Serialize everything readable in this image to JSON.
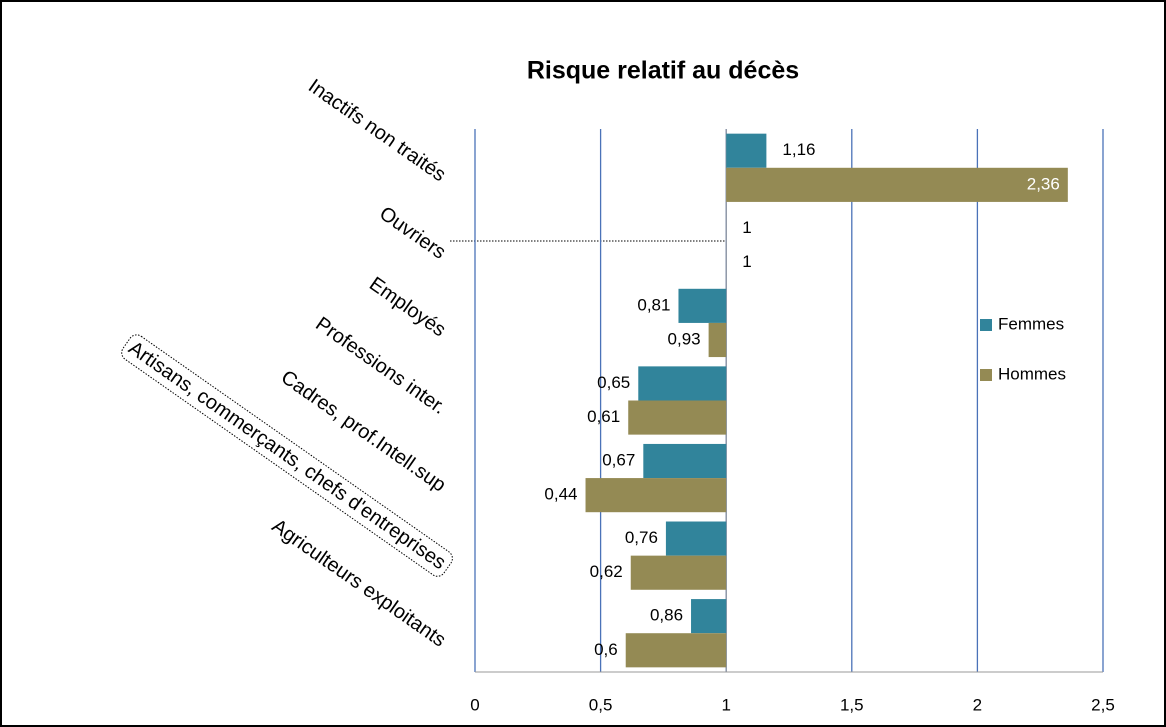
{
  "chart_data": {
    "type": "bar",
    "orientation": "horizontal",
    "title": "Risque relatif au décès",
    "categories": [
      "Inactifs non traités",
      "Ouvriers",
      "Employés",
      "Professions inter.",
      "Cadres, prof.Intell.sup",
      "Artisans, commerçants, chefs d'entreprises",
      "Agriculteurs exploitants"
    ],
    "series": [
      {
        "name": "Femmes",
        "color": "#31849b",
        "values": [
          1.16,
          1,
          0.81,
          0.65,
          0.67,
          0.76,
          0.86
        ],
        "value_labels": [
          "1,16",
          "1",
          "0,81",
          "0,65",
          "0,67",
          "0,76",
          "0,86"
        ]
      },
      {
        "name": "Hommes",
        "color": "#948a54",
        "values": [
          2.36,
          1,
          0.93,
          0.61,
          0.44,
          0.62,
          0.6
        ],
        "value_labels": [
          "2,36",
          "1",
          "0,93",
          "0,61",
          "0,44",
          "0,62",
          "0,6"
        ]
      }
    ],
    "base": 1,
    "xlim": [
      0,
      2.5
    ],
    "xticks": [
      0,
      {
        "value": 0.5,
        "label": "0,5"
      },
      1,
      {
        "value": 1.5,
        "label": "1,5"
      },
      2,
      {
        "value": 2.5,
        "label": "2,5"
      }
    ],
    "grid": true,
    "legend": "right"
  }
}
